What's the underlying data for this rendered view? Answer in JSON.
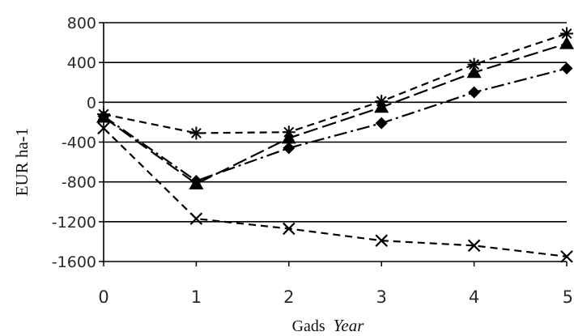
{
  "chart_data": {
    "type": "line",
    "title": "",
    "xlabel_main": "Gads",
    "xlabel_italic": "Year",
    "ylabel": "EUR ha-1",
    "x": [
      0,
      1,
      2,
      3,
      4,
      5
    ],
    "xlim": [
      0,
      5
    ],
    "ylim": [
      -1600,
      800
    ],
    "ytick_values": [
      800,
      400,
      0,
      -400,
      -800,
      -1200,
      -1600
    ],
    "yticks": [
      "800",
      "400",
      "0",
      "-400",
      "-800",
      "-1200",
      "-1600"
    ],
    "xticks": [
      "0",
      "1",
      "2",
      "3",
      "4",
      "5"
    ],
    "grid": "horizontal",
    "legend": "none",
    "series": [
      {
        "marker": "star",
        "dash": "short-dash",
        "values": [
          -120,
          -310,
          -300,
          10,
          380,
          690
        ]
      },
      {
        "marker": "triangle",
        "dash": "long-dash",
        "values": [
          -150,
          -820,
          -360,
          -50,
          300,
          590
        ]
      },
      {
        "marker": "diamond",
        "dash": "dash-dot",
        "values": [
          -140,
          -790,
          -460,
          -210,
          100,
          340
        ]
      },
      {
        "marker": "x",
        "dash": "short-dash",
        "values": [
          -260,
          -1170,
          -1270,
          -1390,
          -1440,
          -1550
        ]
      }
    ],
    "line_color": "#000000",
    "grid_color": "#000000"
  }
}
